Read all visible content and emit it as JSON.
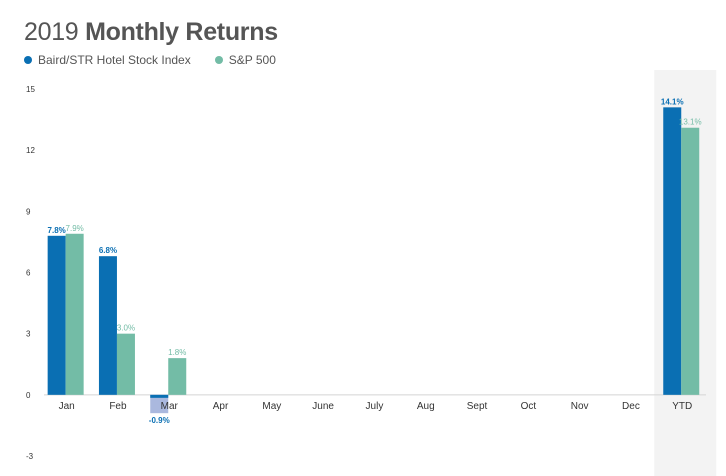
{
  "header": {
    "title_year": "2019",
    "title_main": "Monthly Returns"
  },
  "colors": {
    "series1": "#0a6fb3",
    "series2": "#73bca6",
    "negative_bar": "#aab8de",
    "ytd_band": "#f3f3f3"
  },
  "chart_data": {
    "type": "bar",
    "title": "2019 Monthly Returns",
    "xlabel": "",
    "ylabel": "",
    "categories": [
      "Jan",
      "Feb",
      "Mar",
      "Apr",
      "May",
      "June",
      "July",
      "Aug",
      "Sept",
      "Oct",
      "Nov",
      "Dec",
      "YTD"
    ],
    "series": [
      {
        "name": "Baird/STR Hotel Stock Index",
        "values": [
          7.8,
          6.8,
          -0.9,
          null,
          null,
          null,
          null,
          null,
          null,
          null,
          null,
          null,
          14.1
        ],
        "labels": [
          "7.8%",
          "6.8%",
          "-0.9%",
          "",
          "",
          "",
          "",
          "",
          "",
          "",
          "",
          "",
          "14.1%"
        ]
      },
      {
        "name": "S&P 500",
        "values": [
          7.9,
          3.0,
          1.8,
          null,
          null,
          null,
          null,
          null,
          null,
          null,
          null,
          null,
          13.1
        ],
        "labels": [
          "7.9%",
          "3.0%",
          "1.8%",
          "",
          "",
          "",
          "",
          "",
          "",
          "",
          "",
          "",
          "13.1%"
        ]
      }
    ],
    "yticks": [
      "15",
      "12",
      "9",
      "6",
      "3",
      "0",
      "-3"
    ],
    "ylim": [
      -3,
      15
    ],
    "grid": false,
    "legend": "top-left",
    "highlight_category": "YTD"
  }
}
